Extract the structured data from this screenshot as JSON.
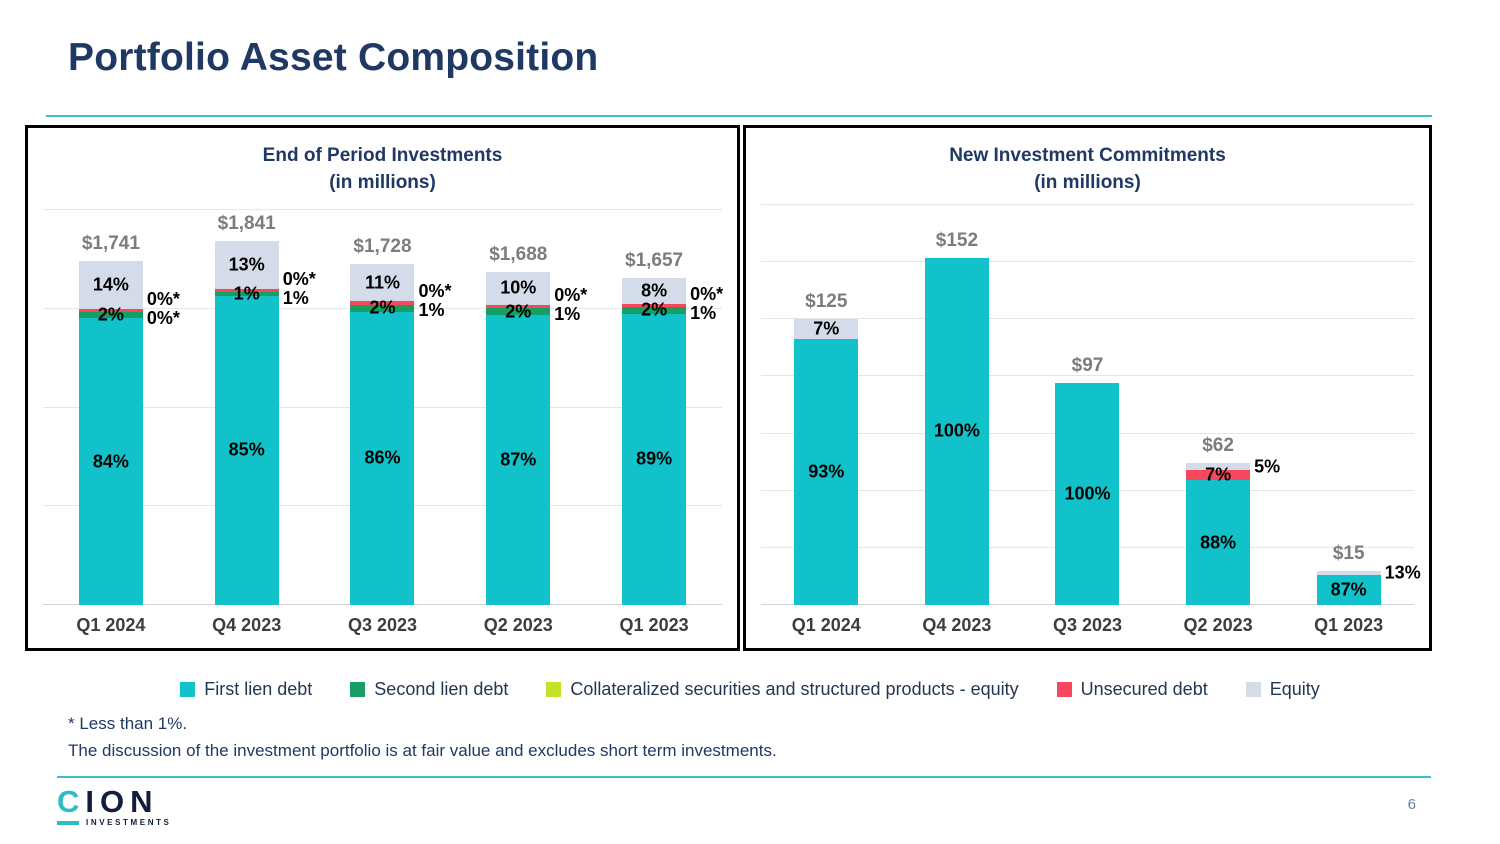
{
  "slide": {
    "title": "Portfolio Asset Composition",
    "page_number": "6",
    "footnote_1": "* Less than 1%.",
    "footnote_2": "The discussion of the investment portfolio is at fair value and excludes short term investments.",
    "logo": {
      "brand_c": "C",
      "brand_rest": "ION",
      "subtext": "INVESTMENTS"
    }
  },
  "colors": {
    "first_lien": "#12C2CA",
    "second_lien": "#179E63",
    "collateralized": "#C4E327",
    "unsecured": "#F8465C",
    "equity": "#D5DCE9",
    "accent_teal": "#3EC0C6",
    "navy": "#1F3864"
  },
  "legend": [
    {
      "label": "First lien debt",
      "color_key": "first_lien"
    },
    {
      "label": "Second lien debt",
      "color_key": "second_lien"
    },
    {
      "label": "Collateralized securities and structured products - equity",
      "color_key": "collateralized"
    },
    {
      "label": "Unsecured debt",
      "color_key": "unsecured"
    },
    {
      "label": "Equity",
      "color_key": "equity"
    }
  ],
  "chart_data": [
    {
      "type": "bar",
      "stacked": true,
      "title": "End of Period Investments",
      "subtitle": "(in millions)",
      "grid": true,
      "legend_position": "bottom-shared",
      "ylim": [
        0,
        2000
      ],
      "gridline_step": 500,
      "categories": [
        "Q1 2024",
        "Q4 2023",
        "Q3 2023",
        "Q2 2023",
        "Q1 2023"
      ],
      "bars": [
        {
          "category": "Q1 2024",
          "total_label": "$1,741",
          "total_value": 1741,
          "segments": [
            {
              "series": "First lien debt",
              "color_key": "first_lien",
              "pct": 84,
              "label": "84%"
            },
            {
              "series": "Second lien debt",
              "color_key": "second_lien",
              "pct": 2,
              "label": "2%"
            },
            {
              "series": "Collateralized securities and structured products - equity",
              "color_key": "collateralized",
              "pct": 0,
              "label": null,
              "pct_label": "0%*"
            },
            {
              "series": "Unsecured debt",
              "color_key": "unsecured",
              "pct": 0.8,
              "label": null,
              "pct_label": "0%*"
            },
            {
              "series": "Equity",
              "color_key": "equity",
              "pct": 14,
              "label": "14%"
            }
          ],
          "side_labels": {
            "anchor_pct_from_top": 14,
            "texts": [
              "0%*",
              "0%*"
            ]
          }
        },
        {
          "category": "Q4 2023",
          "total_label": "$1,841",
          "total_value": 1841,
          "segments": [
            {
              "series": "First lien debt",
              "color_key": "first_lien",
              "pct": 85,
              "label": "85%"
            },
            {
              "series": "Second lien debt",
              "color_key": "second_lien",
              "pct": 1,
              "label": "1%"
            },
            {
              "series": "Collateralized securities and structured products - equity",
              "color_key": "collateralized",
              "pct": 0,
              "label": null,
              "pct_label": "0%*"
            },
            {
              "series": "Unsecured debt",
              "color_key": "unsecured",
              "pct": 1,
              "label": null,
              "pct_label": "1%"
            },
            {
              "series": "Equity",
              "color_key": "equity",
              "pct": 13,
              "label": "13%"
            }
          ],
          "side_labels": {
            "anchor_pct_from_top": 13,
            "texts": [
              "0%*",
              "1%"
            ]
          }
        },
        {
          "category": "Q3 2023",
          "total_label": "$1,728",
          "total_value": 1728,
          "segments": [
            {
              "series": "First lien debt",
              "color_key": "first_lien",
              "pct": 86,
              "label": "86%"
            },
            {
              "series": "Second lien debt",
              "color_key": "second_lien",
              "pct": 2,
              "label": "2%"
            },
            {
              "series": "Collateralized securities and structured products - equity",
              "color_key": "collateralized",
              "pct": 0,
              "label": null,
              "pct_label": "0%*"
            },
            {
              "series": "Unsecured debt",
              "color_key": "unsecured",
              "pct": 1,
              "label": null,
              "pct_label": "1%"
            },
            {
              "series": "Equity",
              "color_key": "equity",
              "pct": 11,
              "label": "11%"
            }
          ],
          "side_labels": {
            "anchor_pct_from_top": 11,
            "texts": [
              "0%*",
              "1%"
            ]
          }
        },
        {
          "category": "Q2 2023",
          "total_label": "$1,688",
          "total_value": 1688,
          "segments": [
            {
              "series": "First lien debt",
              "color_key": "first_lien",
              "pct": 87,
              "label": "87%"
            },
            {
              "series": "Second lien debt",
              "color_key": "second_lien",
              "pct": 2,
              "label": "2%"
            },
            {
              "series": "Collateralized securities and structured products - equity",
              "color_key": "collateralized",
              "pct": 0,
              "label": null,
              "pct_label": "0%*"
            },
            {
              "series": "Unsecured debt",
              "color_key": "unsecured",
              "pct": 1,
              "label": null,
              "pct_label": "1%"
            },
            {
              "series": "Equity",
              "color_key": "equity",
              "pct": 10,
              "label": "10%"
            }
          ],
          "side_labels": {
            "anchor_pct_from_top": 10,
            "texts": [
              "0%*",
              "1%"
            ]
          }
        },
        {
          "category": "Q1 2023",
          "total_label": "$1,657",
          "total_value": 1657,
          "segments": [
            {
              "series": "First lien debt",
              "color_key": "first_lien",
              "pct": 89,
              "label": "89%"
            },
            {
              "series": "Second lien debt",
              "color_key": "second_lien",
              "pct": 2,
              "label": "2%"
            },
            {
              "series": "Collateralized securities and structured products - equity",
              "color_key": "collateralized",
              "pct": 0,
              "label": null,
              "pct_label": "0%*"
            },
            {
              "series": "Unsecured debt",
              "color_key": "unsecured",
              "pct": 1,
              "label": null,
              "pct_label": "1%"
            },
            {
              "series": "Equity",
              "color_key": "equity",
              "pct": 8,
              "label": "8%"
            }
          ],
          "side_labels": {
            "anchor_pct_from_top": 8,
            "texts": [
              "0%*",
              "1%"
            ]
          }
        }
      ]
    },
    {
      "type": "bar",
      "stacked": true,
      "title": "New Investment Commitments",
      "subtitle": "(in millions)",
      "grid": true,
      "legend_position": "bottom-shared",
      "ylim": [
        0,
        175
      ],
      "gridline_step": 25,
      "categories": [
        "Q1 2024",
        "Q4 2023",
        "Q3 2023",
        "Q2 2023",
        "Q1 2023"
      ],
      "bars": [
        {
          "category": "Q1 2024",
          "total_label": "$125",
          "total_value": 125,
          "segments": [
            {
              "series": "First lien debt",
              "color_key": "first_lien",
              "pct": 93,
              "label": "93%"
            },
            {
              "series": "Equity",
              "color_key": "equity",
              "pct": 7,
              "label": "7%"
            }
          ],
          "side_labels": null
        },
        {
          "category": "Q4 2023",
          "total_label": "$152",
          "total_value": 152,
          "segments": [
            {
              "series": "First lien debt",
              "color_key": "first_lien",
              "pct": 100,
              "label": "100%"
            }
          ],
          "side_labels": null
        },
        {
          "category": "Q3 2023",
          "total_label": "$97",
          "total_value": 97,
          "segments": [
            {
              "series": "First lien debt",
              "color_key": "first_lien",
              "pct": 100,
              "label": "100%"
            }
          ],
          "side_labels": null
        },
        {
          "category": "Q2 2023",
          "total_label": "$62",
          "total_value": 62,
          "segments": [
            {
              "series": "First lien debt",
              "color_key": "first_lien",
              "pct": 88,
              "label": "88%"
            },
            {
              "series": "Unsecured debt",
              "color_key": "unsecured",
              "pct": 7,
              "label": "7%"
            },
            {
              "series": "Equity",
              "color_key": "equity",
              "pct": 5,
              "label": null,
              "pct_label": "5%"
            }
          ],
          "side_labels": {
            "anchor_pct_from_top": 2.5,
            "texts": [
              "5%"
            ]
          }
        },
        {
          "category": "Q1 2023",
          "total_label": "$15",
          "total_value": 15,
          "segments": [
            {
              "series": "First lien debt",
              "color_key": "first_lien",
              "pct": 87,
              "label": "87%"
            },
            {
              "series": "Equity",
              "color_key": "equity",
              "pct": 13,
              "label": null,
              "pct_label": "13%"
            }
          ],
          "side_labels": {
            "anchor_pct_from_top": 6.5,
            "texts": [
              "13%"
            ]
          }
        }
      ]
    }
  ]
}
